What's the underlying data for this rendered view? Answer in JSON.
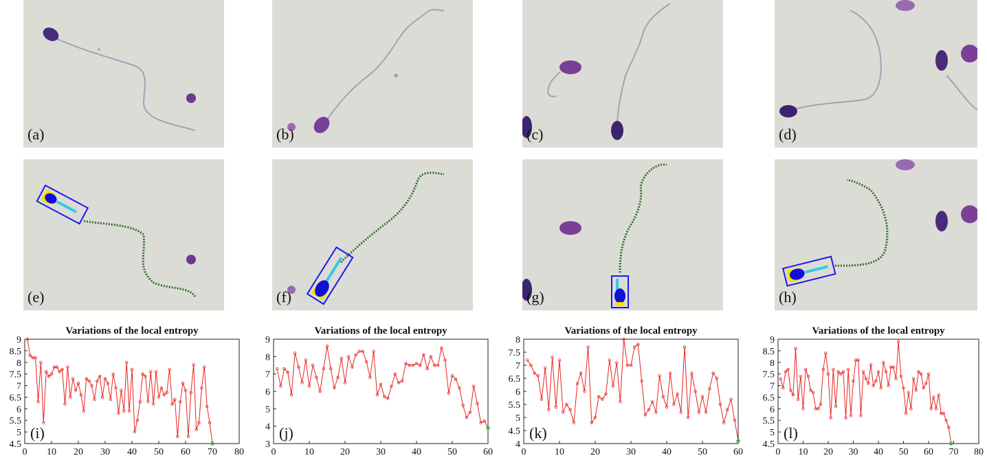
{
  "figure": {
    "panel_labels": [
      "(a)",
      "(b)",
      "(c)",
      "(d)",
      "(e)",
      "(f)",
      "(g)",
      "(h)"
    ],
    "colors": {
      "background": "#dcdcd6",
      "cell": "#4a2a7a",
      "tail": "#a99fb6",
      "trace": "#2f6b2a",
      "box": "#1a1aee",
      "head_fill": "#1010d8",
      "midpiece": "#33c8e8",
      "acrosome": "#f2e200",
      "chart_line": "#e8231e",
      "chart_end_marker": "#4caf50"
    }
  },
  "chart_data": [
    {
      "type": "line",
      "panel_label": "(i)",
      "title": "Variations of the local entropy",
      "xlim": [
        0,
        80
      ],
      "ylim": [
        4.5,
        9
      ],
      "xticks": [
        0,
        10,
        20,
        30,
        40,
        50,
        60,
        70,
        80
      ],
      "yticks": [
        4.5,
        5,
        5.5,
        6,
        6.5,
        7,
        7.5,
        8,
        8.5,
        9
      ],
      "y": [
        9.0,
        8.3,
        8.2,
        8.2,
        6.3,
        8.0,
        5.4,
        7.6,
        7.4,
        7.5,
        7.8,
        7.8,
        7.6,
        7.7,
        6.2,
        7.8,
        6.5,
        7.3,
        6.8,
        7.1,
        6.6,
        5.9,
        7.3,
        7.2,
        7.0,
        6.4,
        7.2,
        7.4,
        6.5,
        7.3,
        7.1,
        6.4,
        7.5,
        6.9,
        5.8,
        6.8,
        5.9,
        8.0,
        5.9,
        7.7,
        5.0,
        5.5,
        6.3,
        7.5,
        7.4,
        6.3,
        7.6,
        6.2,
        7.6,
        6.5,
        6.9,
        6.6,
        6.7,
        7.7,
        6.2,
        6.4,
        4.8,
        6.3,
        7.1,
        6.8,
        4.8,
        6.7,
        7.9,
        5.1,
        5.4,
        6.9,
        7.8,
        6.1,
        5.4,
        4.5
      ]
    },
    {
      "type": "line",
      "panel_label": "(j)",
      "title": "Variations of the local entropy",
      "xlim": [
        0,
        60
      ],
      "ylim": [
        3,
        9
      ],
      "xticks": [
        0,
        10,
        20,
        30,
        40,
        50,
        60
      ],
      "yticks": [
        3,
        4,
        5,
        6,
        7,
        8,
        9
      ],
      "y": [
        7.3,
        6.3,
        7.3,
        7.1,
        5.8,
        8.2,
        7.4,
        6.5,
        7.8,
        6.3,
        7.5,
        6.8,
        6.0,
        7.3,
        8.6,
        7.3,
        6.2,
        6.8,
        7.9,
        6.5,
        8.0,
        7.4,
        8.1,
        8.3,
        8.3,
        7.7,
        6.8,
        8.3,
        5.8,
        6.4,
        5.7,
        5.6,
        6.3,
        7.0,
        6.5,
        6.6,
        7.6,
        7.5,
        7.5,
        7.6,
        7.5,
        8.1,
        7.3,
        8.0,
        7.5,
        7.5,
        8.5,
        7.8,
        5.9,
        6.9,
        6.7,
        6.2,
        5.2,
        4.5,
        4.8,
        6.3,
        5.3,
        4.2,
        4.3,
        3.9
      ]
    },
    {
      "type": "line",
      "panel_label": "(k)",
      "title": "Variations of the local entropy",
      "xlim": [
        0,
        60
      ],
      "ylim": [
        4,
        8
      ],
      "xticks": [
        0,
        10,
        20,
        30,
        40,
        50,
        60
      ],
      "yticks": [
        4,
        4.5,
        5,
        5.5,
        6,
        6.5,
        7,
        7.5,
        8
      ],
      "y": [
        7.2,
        7.0,
        6.7,
        6.6,
        5.7,
        6.9,
        5.3,
        7.3,
        5.4,
        7.2,
        5.2,
        5.5,
        5.3,
        4.8,
        6.3,
        6.7,
        6.0,
        7.7,
        4.8,
        5.0,
        5.8,
        5.7,
        5.9,
        7.2,
        6.2,
        7.1,
        5.6,
        8.0,
        7.0,
        7.0,
        7.7,
        7.8,
        6.4,
        5.1,
        5.3,
        5.6,
        5.2,
        6.6,
        5.8,
        5.4,
        6.7,
        5.5,
        5.9,
        5.2,
        7.7,
        5.0,
        6.7,
        6.0,
        5.2,
        5.8,
        5.2,
        6.1,
        6.7,
        6.5,
        5.5,
        4.8,
        5.3,
        5.7,
        4.9,
        4.1
      ]
    },
    {
      "type": "line",
      "panel_label": "(l)",
      "title": "Variations of the local entropy",
      "xlim": [
        0,
        80
      ],
      "ylim": [
        4.5,
        9
      ],
      "xticks": [
        0,
        10,
        20,
        30,
        40,
        50,
        60,
        70,
        80
      ],
      "yticks": [
        4.5,
        5,
        5.5,
        6,
        6.5,
        7,
        7.5,
        8,
        8.5,
        9
      ],
      "y": [
        7.3,
        6.9,
        7.6,
        7.7,
        6.8,
        6.6,
        8.6,
        6.4,
        7.4,
        6.0,
        7.7,
        7.4,
        6.8,
        6.7,
        6.0,
        6.0,
        6.2,
        7.7,
        8.4,
        7.5,
        5.6,
        7.7,
        6.1,
        7.6,
        7.5,
        7.6,
        5.6,
        7.7,
        5.7,
        7.2,
        8.1,
        8.1,
        5.7,
        7.6,
        7.3,
        7.1,
        7.9,
        7.0,
        7.2,
        7.6,
        6.9,
        8.0,
        7.6,
        7.0,
        7.8,
        7.8,
        7.3,
        8.9,
        7.4,
        6.9,
        5.8,
        6.7,
        6.0,
        7.3,
        6.8,
        7.6,
        7.5,
        6.9,
        7.1,
        7.5,
        6.0,
        6.5,
        6.0,
        6.6,
        5.8,
        5.8,
        5.5,
        5.2,
        4.5
      ]
    }
  ]
}
